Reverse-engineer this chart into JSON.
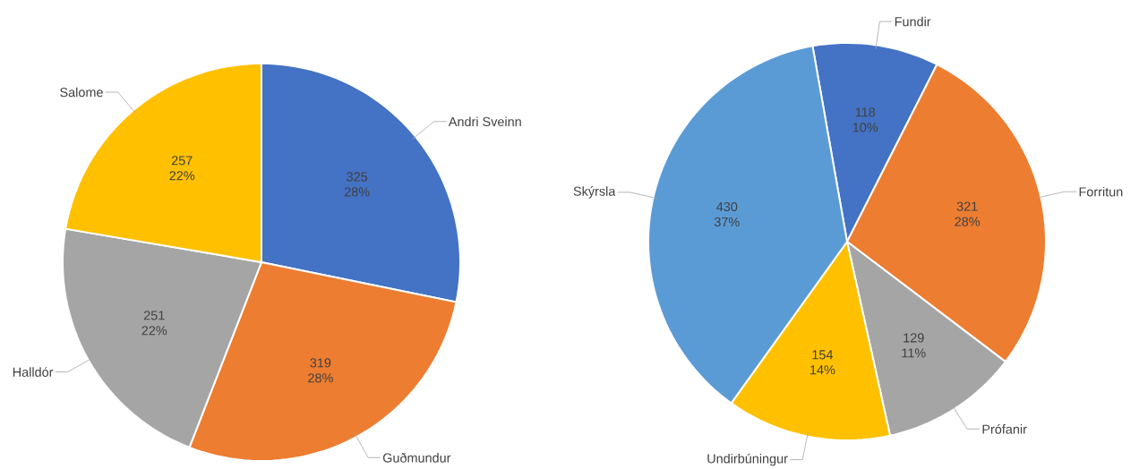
{
  "chart_data": [
    {
      "type": "pie",
      "categories": [
        "Andri Sveinn",
        "Guðmundur",
        "Halldór",
        "Salome"
      ],
      "values": [
        325,
        319,
        251,
        257
      ],
      "colors": [
        "#4472c4",
        "#ed7d31",
        "#a5a5a5",
        "#ffc000"
      ],
      "value_labels": [
        "325 28%",
        "319 28%",
        "251 22%",
        "257 22%"
      ]
    },
    {
      "type": "pie",
      "categories": [
        "Fundir",
        "Forritun",
        "Prófanir",
        "Undirbúningur",
        "Skýrsla"
      ],
      "values": [
        118,
        321,
        129,
        154,
        430
      ],
      "colors": [
        "#4472c4",
        "#ed7d31",
        "#a5a5a5",
        "#ffc000",
        "#5b9bd5"
      ],
      "value_labels": [
        "118 10%",
        "321 28%",
        "129 11%",
        "154 14%",
        "430 37%"
      ]
    }
  ]
}
